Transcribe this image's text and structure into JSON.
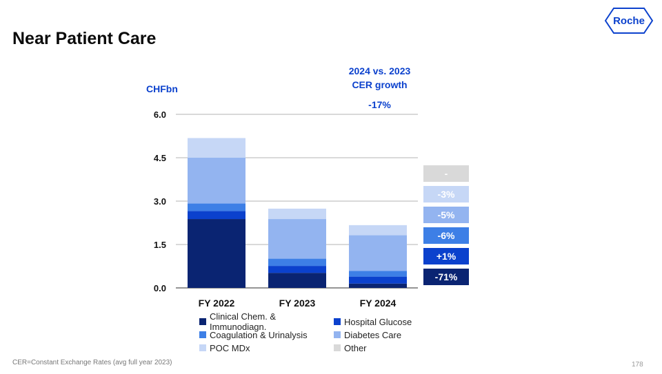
{
  "title": "Near Patient Care",
  "logo": {
    "text": "Roche"
  },
  "growth_header": {
    "line1": "2024 vs. 2023",
    "line2": "CER growth",
    "total": "-17%"
  },
  "unit_label": "CHFbn",
  "footnote": "CER=Constant Exchange Rates (avg full year 2023)",
  "page_number": "178",
  "colors": {
    "clinical": "#0a2472",
    "hospital": "#0b41cd",
    "coagulation": "#3d7fe6",
    "diabetes": "#93b4f0",
    "poc": "#c6d7f6",
    "other": "#d9d9d9",
    "brand": "#0b41cd"
  },
  "growth_badges": [
    {
      "text": "-",
      "color": "#d9d9d9"
    },
    {
      "text": "-3%",
      "color": "#c6d7f6"
    },
    {
      "text": "-5%",
      "color": "#93b4f0"
    },
    {
      "text": "-6%",
      "color": "#3d7fe6"
    },
    {
      "text": "+1%",
      "color": "#0b41cd"
    },
    {
      "text": "-71%",
      "color": "#0a2472"
    }
  ],
  "chart_data": {
    "type": "bar",
    "stacked": true,
    "categories": [
      "FY 2022",
      "FY 2023",
      "FY 2024"
    ],
    "ylim": [
      0,
      6.0
    ],
    "yticks": [
      "0.0",
      "1.5",
      "3.0",
      "4.5",
      "6.0"
    ],
    "ytick_values": [
      0,
      1.5,
      3.0,
      4.5,
      6.0
    ],
    "ylabel": "CHFbn",
    "grid": true,
    "legend_position": "bottom",
    "series": [
      {
        "name": "Clinical Chem. & Immunodiagn.",
        "key": "clinical",
        "values": [
          2.38,
          0.52,
          0.15
        ]
      },
      {
        "name": "Hospital Glucose",
        "key": "hospital",
        "values": [
          0.28,
          0.24,
          0.24
        ]
      },
      {
        "name": "Coagulation & Urinalysis",
        "key": "coagulation",
        "values": [
          0.26,
          0.25,
          0.2
        ]
      },
      {
        "name": "Diabetes Care",
        "key": "diabetes",
        "values": [
          1.58,
          1.37,
          1.23
        ]
      },
      {
        "name": "POC MDx",
        "key": "poc",
        "values": [
          0.68,
          0.36,
          0.35
        ]
      },
      {
        "name": "Other",
        "key": "other",
        "values": [
          0.0,
          0.0,
          0.0
        ]
      }
    ],
    "legend_order": [
      "clinical",
      "hospital",
      "coagulation",
      "diabetes",
      "poc",
      "other"
    ]
  }
}
